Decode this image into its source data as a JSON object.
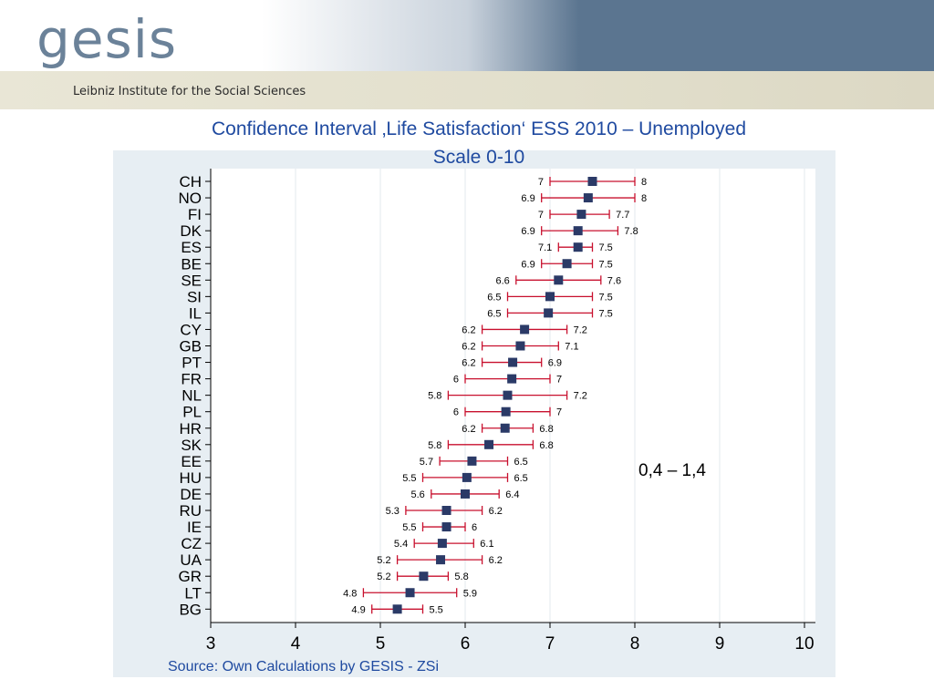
{
  "header": {
    "logo_text": "gesis",
    "logo_subtitle": "Leibniz Institute for the Social Sciences"
  },
  "slide": {
    "title_line1": "Confidence Interval ‚Life Satisfaction‘ ESS 2010 – Unemployed",
    "title_line2": "Scale 0-10",
    "source": "Source: Own Calculations by GESIS - ZSi",
    "annotation": "0,4 – 1,4"
  },
  "colors": {
    "point": "#2b3a67",
    "interval": "#c8102e",
    "plot_bg": "#ffffff",
    "outer_bg": "#e7eef3",
    "title": "#1f4aa0"
  },
  "chart_data": {
    "type": "scatter",
    "subtype": "confidence-interval",
    "xlim": [
      3,
      10
    ],
    "xticks": [
      3,
      4,
      5,
      6,
      7,
      8,
      9,
      10
    ],
    "grid": true,
    "categories": [
      "CH",
      "NO",
      "FI",
      "DK",
      "ES",
      "BE",
      "SE",
      "SI",
      "IL",
      "CY",
      "GB",
      "PT",
      "FR",
      "NL",
      "PL",
      "HR",
      "SK",
      "EE",
      "HU",
      "DE",
      "RU",
      "IE",
      "CZ",
      "UA",
      "GR",
      "LT",
      "BG"
    ],
    "mean": [
      7.5,
      7.45,
      7.37,
      7.33,
      7.33,
      7.2,
      7.1,
      7.0,
      6.98,
      6.7,
      6.65,
      6.56,
      6.55,
      6.5,
      6.48,
      6.47,
      6.28,
      6.08,
      6.02,
      6.0,
      5.78,
      5.78,
      5.73,
      5.71,
      5.51,
      5.35,
      5.2
    ],
    "lower": [
      7,
      6.9,
      7,
      6.9,
      7.1,
      6.9,
      6.6,
      6.5,
      6.5,
      6.2,
      6.2,
      6.2,
      6,
      5.8,
      6,
      6.2,
      5.8,
      5.7,
      5.5,
      5.6,
      5.3,
      5.5,
      5.4,
      5.2,
      5.2,
      4.8,
      4.9
    ],
    "upper": [
      8,
      8,
      7.7,
      7.8,
      7.5,
      7.5,
      7.6,
      7.5,
      7.5,
      7.2,
      7.1,
      6.9,
      7,
      7.2,
      7,
      6.8,
      6.8,
      6.5,
      6.5,
      6.4,
      6.2,
      6,
      6.1,
      6.2,
      5.8,
      5.9,
      5.5
    ]
  }
}
